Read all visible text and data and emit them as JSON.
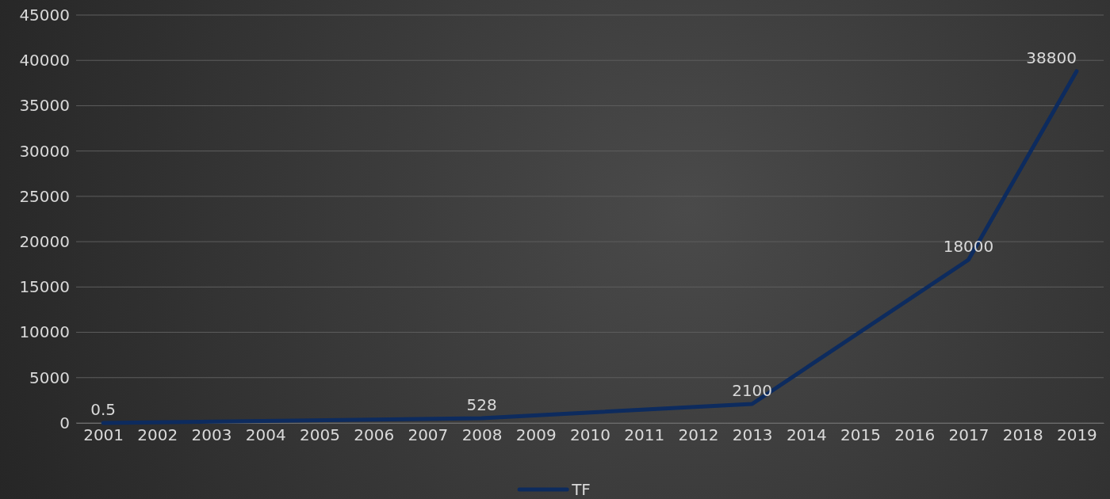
{
  "chart_data": {
    "type": "line",
    "x": [
      2001,
      2008,
      2013,
      2017,
      2019
    ],
    "xlim": [
      2000.5,
      2019.5
    ],
    "xticks": [
      2001,
      2002,
      2003,
      2004,
      2005,
      2006,
      2007,
      2008,
      2009,
      2010,
      2011,
      2012,
      2013,
      2014,
      2015,
      2016,
      2017,
      2018,
      2019
    ],
    "ylim": [
      0,
      45000
    ],
    "yticks": [
      0,
      5000,
      10000,
      15000,
      20000,
      25000,
      30000,
      35000,
      40000,
      45000
    ],
    "series": [
      {
        "name": "TF",
        "color": "#0d2b5e",
        "values": [
          0.5,
          528,
          2100,
          18000,
          38800
        ]
      }
    ],
    "data_labels": true,
    "grid": "y",
    "legend": "bottom",
    "marker": "none",
    "line_style": "solid"
  }
}
